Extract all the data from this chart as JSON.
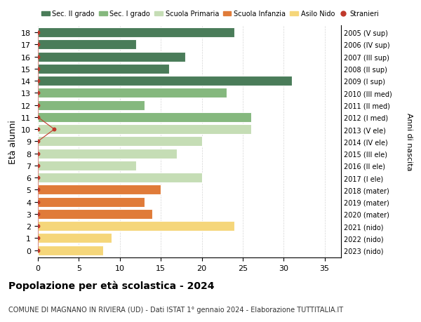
{
  "ages": [
    18,
    17,
    16,
    15,
    14,
    13,
    12,
    11,
    10,
    9,
    8,
    7,
    6,
    5,
    4,
    3,
    2,
    1,
    0
  ],
  "years": [
    "2005 (V sup)",
    "2006 (IV sup)",
    "2007 (III sup)",
    "2008 (II sup)",
    "2009 (I sup)",
    "2010 (III med)",
    "2011 (II med)",
    "2012 (I med)",
    "2013 (V ele)",
    "2014 (IV ele)",
    "2015 (III ele)",
    "2016 (II ele)",
    "2017 (I ele)",
    "2018 (mater)",
    "2019 (mater)",
    "2020 (mater)",
    "2021 (nido)",
    "2022 (nido)",
    "2023 (nido)"
  ],
  "values": [
    24,
    12,
    18,
    16,
    31,
    23,
    13,
    26,
    26,
    20,
    17,
    12,
    20,
    15,
    13,
    14,
    24,
    9,
    8
  ],
  "stranieri": [
    0,
    0,
    0,
    0,
    0,
    0,
    0,
    0,
    2,
    0,
    0,
    0,
    0,
    0,
    0,
    0,
    0,
    0,
    0
  ],
  "colors": {
    "sec2": "#4a7c59",
    "sec1": "#85b87e",
    "primaria": "#c5ddb5",
    "infanzia": "#e07b39",
    "nido": "#f5d67a",
    "stranieri_dot": "#c0392b",
    "stranieri_line": "#c0392b"
  },
  "category_colors": [
    "sec2",
    "sec2",
    "sec2",
    "sec2",
    "sec2",
    "sec1",
    "sec1",
    "sec1",
    "primaria",
    "primaria",
    "primaria",
    "primaria",
    "primaria",
    "infanzia",
    "infanzia",
    "infanzia",
    "nido",
    "nido",
    "nido"
  ],
  "xlim": [
    -0.5,
    37
  ],
  "xticks": [
    0,
    5,
    10,
    15,
    20,
    25,
    30,
    35
  ],
  "title": "Popolazione per età scolastica - 2024",
  "subtitle": "COMUNE DI MAGNANO IN RIVIERA (UD) - Dati ISTAT 1° gennaio 2024 - Elaborazione TUTTITALIA.IT",
  "ylabel": "Età alunni",
  "ylabel2": "Anni di nascita",
  "legend_labels": [
    "Sec. II grado",
    "Sec. I grado",
    "Scuola Primaria",
    "Scuola Infanzia",
    "Asilo Nido",
    "Stranieri"
  ],
  "legend_colors": [
    "#4a7c59",
    "#85b87e",
    "#c5ddb5",
    "#e07b39",
    "#f5d67a",
    "#c0392b"
  ],
  "bg_color": "#ffffff",
  "bar_height": 0.82
}
